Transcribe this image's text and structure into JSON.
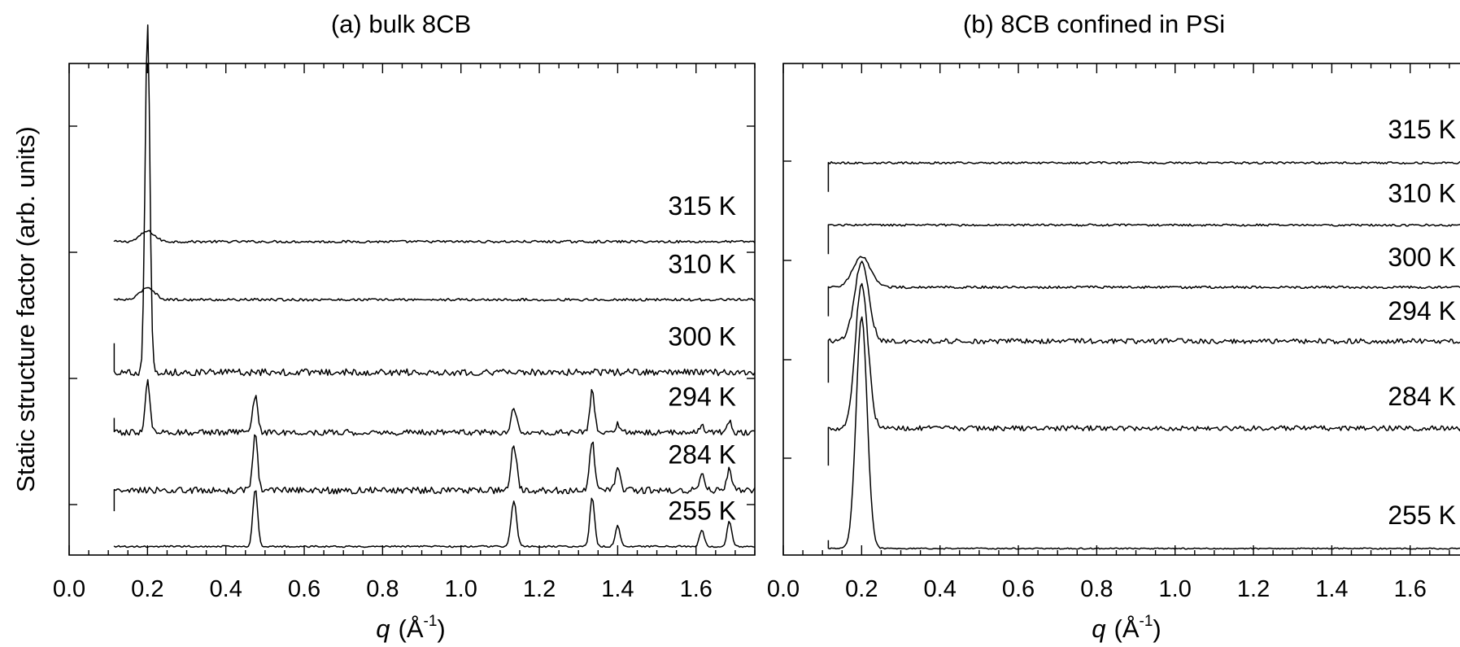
{
  "chart_data": [
    {
      "type": "line",
      "title": "(a) bulk 8CB",
      "xlabel": {
        "symbol": "q",
        "unit": "(Å",
        "exp": "-1",
        "close": ")"
      },
      "ylabel": "Static structure factor (arb. units)",
      "xlim": [
        0.0,
        1.75
      ],
      "x_ticks": [
        "0.0",
        "0.2",
        "0.4",
        "0.6",
        "0.8",
        "1.0",
        "1.2",
        "1.4",
        "1.6"
      ],
      "series": [
        {
          "name": "315 K",
          "baseline": 7.4,
          "start_jump": 0,
          "noise": 0.03,
          "peaks": [
            {
              "q": 0.2,
              "h": 0.25,
              "w": 0.018
            }
          ]
        },
        {
          "name": "310 K",
          "baseline": 6.0,
          "start_jump": 0,
          "noise": 0.03,
          "peaks": [
            {
              "q": 0.2,
              "h": 0.3,
              "w": 0.018
            }
          ]
        },
        {
          "name": "300 K",
          "baseline": 4.25,
          "start_jump": 0.7,
          "noise": 0.08,
          "peaks": [
            {
              "q": 0.2,
              "h": 8.5,
              "w": 0.006
            }
          ]
        },
        {
          "name": "294 K",
          "baseline": 2.8,
          "start_jump": 0.35,
          "noise": 0.07,
          "peaks": [
            {
              "q": 0.2,
              "h": 1.25,
              "w": 0.006
            },
            {
              "q": 0.475,
              "h": 0.9,
              "w": 0.006
            },
            {
              "q": 1.135,
              "h": 0.6,
              "w": 0.007
            },
            {
              "q": 1.335,
              "h": 1.0,
              "w": 0.006
            },
            {
              "q": 1.4,
              "h": 0.2,
              "w": 0.006
            },
            {
              "q": 1.615,
              "h": 0.15,
              "w": 0.006
            },
            {
              "q": 1.685,
              "h": 0.25,
              "w": 0.006
            }
          ]
        },
        {
          "name": "284 K",
          "baseline": 1.4,
          "start_jump": -0.5,
          "noise": 0.08,
          "peaks": [
            {
              "q": 0.475,
              "h": 1.4,
              "w": 0.006
            },
            {
              "q": 1.135,
              "h": 1.1,
              "w": 0.007
            },
            {
              "q": 1.335,
              "h": 1.2,
              "w": 0.006
            },
            {
              "q": 1.4,
              "h": 0.5,
              "w": 0.006
            },
            {
              "q": 1.615,
              "h": 0.4,
              "w": 0.006
            },
            {
              "q": 1.685,
              "h": 0.55,
              "w": 0.006
            }
          ]
        },
        {
          "name": "255 K",
          "baseline": 0.05,
          "start_jump": 0,
          "noise": 0.02,
          "peaks": [
            {
              "q": 0.475,
              "h": 1.4,
              "w": 0.006
            },
            {
              "q": 1.135,
              "h": 1.1,
              "w": 0.007
            },
            {
              "q": 1.335,
              "h": 1.2,
              "w": 0.006
            },
            {
              "q": 1.4,
              "h": 0.5,
              "w": 0.006
            },
            {
              "q": 1.615,
              "h": 0.4,
              "w": 0.006
            },
            {
              "q": 1.685,
              "h": 0.6,
              "w": 0.006
            }
          ]
        }
      ]
    },
    {
      "type": "line",
      "title": "(b) 8CB confined in PSi",
      "xlabel": {
        "symbol": "q",
        "unit": "(Å",
        "exp": "-1",
        "close": ")"
      },
      "xlim": [
        0.0,
        1.75
      ],
      "x_ticks": [
        "0.0",
        "0.2",
        "0.4",
        "0.6",
        "0.8",
        "1.0",
        "1.2",
        "1.4",
        "1.6"
      ],
      "series": [
        {
          "name": "315 K",
          "baseline": 9.3,
          "start_jump": -0.7,
          "noise": 0.025,
          "peaks": []
        },
        {
          "name": "310 K",
          "baseline": 7.8,
          "start_jump": -0.7,
          "noise": 0.025,
          "peaks": []
        },
        {
          "name": "300 K",
          "baseline": 6.3,
          "start_jump": -0.7,
          "noise": 0.03,
          "peaks": [
            {
              "q": 0.2,
              "h": 0.75,
              "w": 0.022
            }
          ]
        },
        {
          "name": "294 K",
          "baseline": 5.0,
          "start_jump": -1.0,
          "noise": 0.06,
          "peaks": [
            {
              "q": 0.2,
              "h": 1.9,
              "w": 0.018
            }
          ]
        },
        {
          "name": "284 K",
          "baseline": 2.9,
          "start_jump": -0.9,
          "noise": 0.06,
          "peaks": [
            {
              "q": 0.2,
              "h": 3.5,
              "w": 0.016
            }
          ]
        },
        {
          "name": "255 K",
          "baseline": 0.0,
          "start_jump": 0.2,
          "noise": 0.015,
          "peaks": [
            {
              "q": 0.2,
              "h": 5.6,
              "w": 0.014
            }
          ]
        }
      ]
    }
  ]
}
